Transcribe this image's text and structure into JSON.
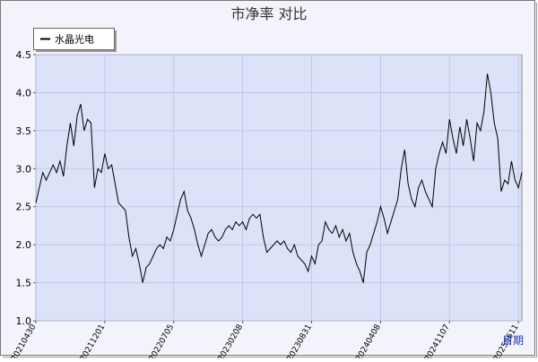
{
  "chart_data": {
    "type": "line",
    "title": "市净率 对比",
    "x_label": "日期",
    "categories": [
      "20210430",
      null,
      null,
      null,
      null,
      null,
      null,
      null,
      null,
      null,
      null,
      null,
      null,
      null,
      null,
      null,
      null,
      null,
      null,
      null,
      "20211201",
      null,
      null,
      null,
      null,
      null,
      null,
      null,
      null,
      null,
      null,
      null,
      null,
      null,
      null,
      null,
      null,
      null,
      null,
      null,
      "20220705",
      null,
      null,
      null,
      null,
      null,
      null,
      null,
      null,
      null,
      null,
      null,
      null,
      null,
      null,
      null,
      null,
      null,
      null,
      null,
      "20230208",
      null,
      null,
      null,
      null,
      null,
      null,
      null,
      null,
      null,
      null,
      null,
      null,
      null,
      null,
      null,
      null,
      null,
      null,
      null,
      "20230831",
      null,
      null,
      null,
      null,
      null,
      null,
      null,
      null,
      null,
      null,
      null,
      null,
      null,
      null,
      null,
      null,
      null,
      null,
      null,
      "20240408",
      null,
      null,
      null,
      null,
      null,
      null,
      null,
      null,
      null,
      null,
      null,
      null,
      null,
      null,
      null,
      null,
      null,
      null,
      null,
      "20241107",
      null,
      null,
      null,
      null,
      null,
      null,
      null,
      null,
      null,
      null,
      null,
      null,
      null,
      null,
      null,
      null,
      null,
      null,
      null,
      "20250611",
      null
    ],
    "series": [
      {
        "name": "水晶光电",
        "color": "#000000",
        "values": [
          2.55,
          2.75,
          2.95,
          2.85,
          2.95,
          3.05,
          2.95,
          3.1,
          2.9,
          3.3,
          3.6,
          3.3,
          3.7,
          3.85,
          3.5,
          3.65,
          3.6,
          2.75,
          3.0,
          2.95,
          3.2,
          3.0,
          3.05,
          2.8,
          2.55,
          2.5,
          2.45,
          2.1,
          1.85,
          1.95,
          1.75,
          1.5,
          1.7,
          1.75,
          1.85,
          1.95,
          2.0,
          1.95,
          2.1,
          2.05,
          2.2,
          2.4,
          2.6,
          2.7,
          2.45,
          2.35,
          2.2,
          2.0,
          1.85,
          2.0,
          2.15,
          2.2,
          2.1,
          2.05,
          2.1,
          2.2,
          2.25,
          2.2,
          2.3,
          2.25,
          2.3,
          2.2,
          2.35,
          2.4,
          2.35,
          2.4,
          2.1,
          1.9,
          1.95,
          2.0,
          2.05,
          2.0,
          2.05,
          1.95,
          1.9,
          2.0,
          1.85,
          1.8,
          1.75,
          1.65,
          1.85,
          1.75,
          2.0,
          2.05,
          2.3,
          2.2,
          2.15,
          2.25,
          2.1,
          2.2,
          2.05,
          2.15,
          1.9,
          1.75,
          1.65,
          1.5,
          1.9,
          2.0,
          2.15,
          2.3,
          2.5,
          2.35,
          2.15,
          2.3,
          2.45,
          2.6,
          3.0,
          3.25,
          2.8,
          2.6,
          2.5,
          2.75,
          2.85,
          2.7,
          2.6,
          2.5,
          3.0,
          3.2,
          3.35,
          3.2,
          3.65,
          3.4,
          3.2,
          3.55,
          3.3,
          3.65,
          3.4,
          3.1,
          3.6,
          3.5,
          3.75,
          4.25,
          4.0,
          3.6,
          3.4,
          2.7,
          2.85,
          2.8,
          3.1,
          2.85,
          2.75,
          2.95
        ]
      }
    ],
    "ylim": [
      1,
      4.5
    ],
    "yticks": [
      {
        "value": 1,
        "label": "1.0"
      },
      1.5,
      {
        "value": 2,
        "label": "2.0"
      },
      2.5,
      {
        "value": 3,
        "label": "3.0"
      },
      3.5,
      {
        "value": 4,
        "label": "4.0"
      },
      4.5
    ],
    "grid": true
  }
}
